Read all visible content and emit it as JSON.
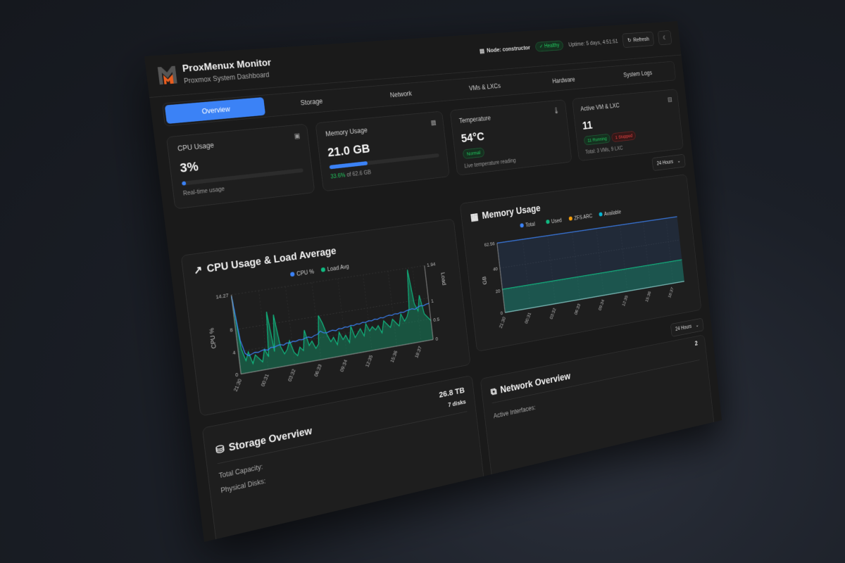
{
  "header": {
    "title": "ProxMenux Monitor",
    "subtitle": "Proxmox System Dashboard",
    "node": "Node: constructor",
    "health": "Healthy",
    "uptime": "Uptime: 5 days, 4:51:51",
    "refresh_label": "Refresh",
    "icons": {
      "node": "server-icon",
      "health": "check-circle-icon",
      "refresh": "refresh-icon",
      "theme": "moon-icon"
    }
  },
  "tabs": [
    {
      "label": "Overview",
      "active": true
    },
    {
      "label": "Storage"
    },
    {
      "label": "Network"
    },
    {
      "label": "VMs & LXCs"
    },
    {
      "label": "Hardware"
    },
    {
      "label": "System Logs"
    }
  ],
  "stats": {
    "cpu": {
      "label": "CPU Usage",
      "value": "3%",
      "percent": 3,
      "sub": "Real-time usage",
      "icon": "cpu-icon"
    },
    "memory": {
      "label": "Memory Usage",
      "value": "21.0 GB",
      "percent": 33.6,
      "percent_text": "33.6%",
      "sub": "of 62.6 GB",
      "icon": "memory-icon"
    },
    "temperature": {
      "label": "Temperature",
      "value": "54°C",
      "status": "Normal",
      "sub": "Live temperature reading",
      "icon": "thermometer-icon"
    },
    "vms": {
      "label": "Active VM & LXC",
      "value": "11",
      "running": "11 Running",
      "stopped": "1 Stopped",
      "sub": "Total: 3 VMs, 9 LXC",
      "icon": "server-icon"
    }
  },
  "time_range": "24 Hours",
  "colors": {
    "accent": "#3b82f6",
    "cpu": "#3b82f6",
    "load": "#10b981",
    "used": "#10b981",
    "zfs": "#f59e0b",
    "available": "#06b6d4",
    "healthy": "#22c55e",
    "stopped": "#ef4444"
  },
  "chart_data": [
    {
      "type": "line",
      "title": "CPU Usage & Load Average",
      "ylabel": "CPU %",
      "y2label": "Load",
      "ylim": [
        0,
        14.27
      ],
      "y2lim": [
        0,
        1.94
      ],
      "yticks": [
        0,
        4,
        8,
        14.27
      ],
      "y2ticks": [
        0,
        0.5,
        1,
        1.94
      ],
      "xticks": [
        "21:30",
        "00:31",
        "03:32",
        "06:33",
        "09:34",
        "12:35",
        "15:36",
        "18:37"
      ],
      "series": [
        {
          "name": "CPU %",
          "axis": "left",
          "values": [
            14,
            6,
            3.5,
            3,
            3.2,
            3.4,
            3.3,
            3.5,
            3.6,
            3.4,
            3.8,
            3.7,
            3.9,
            4,
            3.8,
            4.1,
            4,
            4.2,
            4.1,
            4.3,
            4.2,
            4.4,
            4.5,
            4.3,
            4.6,
            4.7,
            5.2,
            4.8,
            4.7,
            4.9,
            5,
            4.8,
            5.1,
            5,
            5.2,
            5.1,
            5.3,
            5.2,
            5.4,
            5.3,
            5.5,
            5.4,
            5.6,
            5.5,
            5.7,
            5.6,
            5.8,
            5.7,
            5.9,
            6,
            5.9,
            6.1,
            6,
            6.2,
            6.1,
            6.3,
            6.4,
            6.5,
            6.3,
            6.6,
            6.8,
            6.7,
            6.9,
            7
          ]
        },
        {
          "name": "Load Avg",
          "axis": "right",
          "values": [
            1.9,
            0.6,
            0.3,
            0.5,
            0.2,
            0.4,
            0.3,
            0.2,
            0.5,
            0.3,
            1.4,
            0.4,
            1.3,
            0.5,
            0.3,
            0.4,
            0.6,
            0.3,
            0.2,
            0.4,
            0.3,
            0.8,
            0.4,
            0.5,
            0.3,
            0.4,
            1.1,
            0.9,
            0.6,
            0.4,
            0.5,
            0.3,
            0.6,
            0.4,
            0.5,
            0.3,
            0.7,
            0.4,
            0.5,
            0.6,
            0.4,
            0.7,
            0.5,
            0.6,
            0.5,
            0.6,
            0.4,
            0.7,
            0.6,
            0.5,
            0.7,
            0.6,
            0.5,
            0.8,
            0.6,
            0.7,
            0.9,
            1.9,
            1.0,
            0.8,
            1.2,
            0.7,
            0.6,
            0.5
          ]
        }
      ],
      "legend": "top",
      "grid": true
    },
    {
      "type": "area",
      "title": "Memory Usage",
      "ylabel": "GB",
      "ylim": [
        0,
        62.56
      ],
      "yticks": [
        0,
        20,
        40,
        62.56
      ],
      "xticks": [
        "21:30",
        "00:31",
        "03:32",
        "06:33",
        "09:34",
        "12:35",
        "15:36",
        "18:37"
      ],
      "series": [
        {
          "name": "Total",
          "values": [
            62.56,
            62.56,
            62.56,
            62.56,
            62.56,
            62.56,
            62.56,
            62.56
          ]
        },
        {
          "name": "Used",
          "values": [
            21,
            21,
            21,
            21,
            21,
            21,
            21,
            21
          ]
        },
        {
          "name": "ZFS ARC",
          "values": [
            0,
            0,
            0,
            0,
            0,
            0,
            0,
            0
          ]
        },
        {
          "name": "Available",
          "values": [
            0,
            0,
            0,
            0,
            0,
            0,
            0,
            0
          ]
        }
      ],
      "legend": "top",
      "grid": true
    }
  ],
  "storage": {
    "title": "Storage Overview",
    "capacity_label": "Total Capacity:",
    "capacity": "26.8 TB",
    "disks_label": "Physical Disks:",
    "disks": "7 disks",
    "icon": "hard-drive-icon"
  },
  "network": {
    "title": "Network Overview",
    "interfaces_label": "Active Interfaces:",
    "interfaces": "2",
    "icon": "network-icon"
  }
}
